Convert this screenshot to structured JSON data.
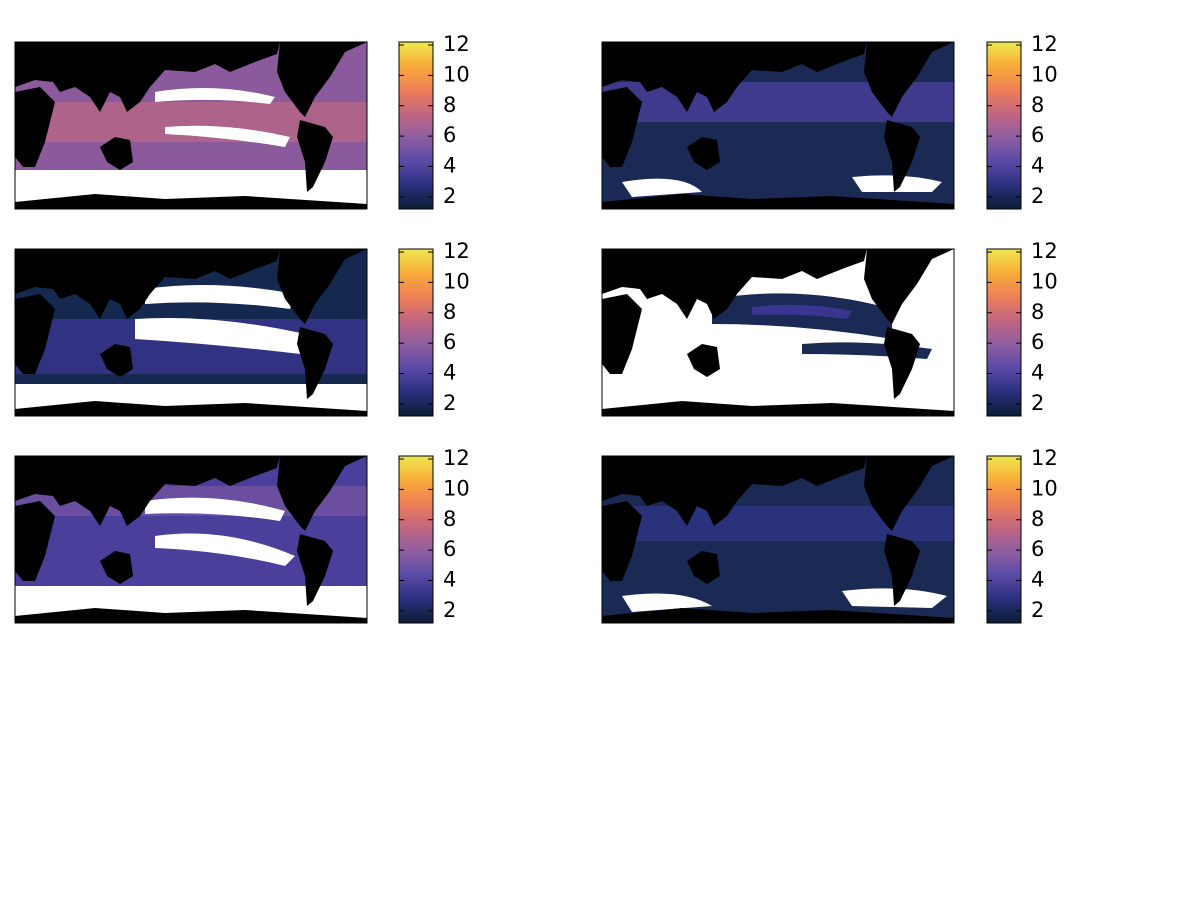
{
  "colormap": [
    "#0b1d33",
    "#2a2f7e",
    "#5a4aa6",
    "#8d5ea0",
    "#c26682",
    "#ef7f56",
    "#f8ac3a",
    "#eee84f"
  ],
  "panels": [
    {
      "colorbar": {
        "lim": [
          1.2,
          12.2
        ],
        "ticks": [
          2,
          4,
          6,
          8,
          10,
          12
        ]
      }
    },
    {
      "colorbar": {
        "lim": [
          1.2,
          12.2
        ],
        "ticks": [
          2,
          4,
          6,
          8,
          10,
          12
        ]
      }
    },
    {
      "colorbar": {
        "lim": [
          1.2,
          12.2
        ],
        "ticks": [
          2,
          4,
          6,
          8,
          10,
          12
        ]
      }
    },
    {
      "colorbar": {
        "lim": [
          1.2,
          12.2
        ],
        "ticks": [
          2,
          4,
          6,
          8,
          10,
          12
        ]
      }
    },
    {
      "colorbar": {
        "lim": [
          1.2,
          12.2
        ],
        "ticks": [
          2,
          4,
          6,
          8,
          10,
          12
        ]
      }
    },
    {
      "colorbar": {
        "lim": [
          1.2,
          12.2
        ],
        "ticks": [
          2,
          4,
          6,
          8,
          10,
          12
        ]
      }
    }
  ]
}
